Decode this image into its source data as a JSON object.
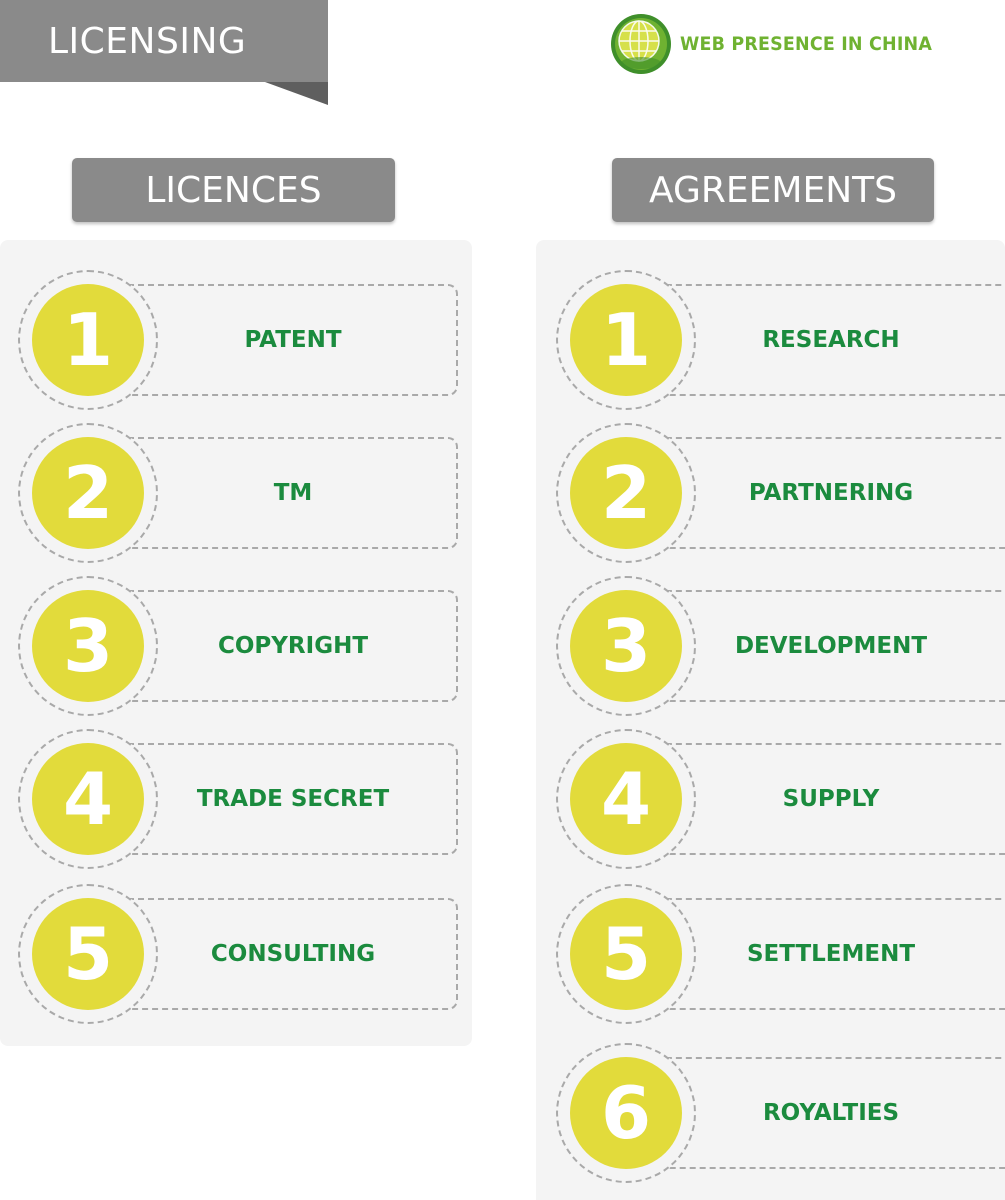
{
  "banner": {
    "title": "LICENSING"
  },
  "logo": {
    "text": "WEB PRESENCE IN CHINA",
    "icon": "globe-icon",
    "colors": {
      "green": "#6fb231",
      "yellow": "#d6e04a"
    }
  },
  "columns": {
    "licences": {
      "title": "LICENCES",
      "items": [
        {
          "number": "1",
          "label": "PATENT"
        },
        {
          "number": "2",
          "label": "TM"
        },
        {
          "number": "3",
          "label": "COPYRIGHT"
        },
        {
          "number": "4",
          "label": "TRADE SECRET"
        },
        {
          "number": "5",
          "label": "CONSULTING"
        }
      ]
    },
    "agreements": {
      "title": "AGREEMENTS",
      "items": [
        {
          "number": "1",
          "label": "RESEARCH"
        },
        {
          "number": "2",
          "label": "PARTNERING"
        },
        {
          "number": "3",
          "label": "DEVELOPMENT"
        },
        {
          "number": "4",
          "label": "SUPPLY"
        },
        {
          "number": "5",
          "label": "SETTLEMENT"
        },
        {
          "number": "6",
          "label": "ROYALTIES"
        }
      ]
    }
  },
  "colors": {
    "header_gray": "#8a8a8a",
    "circle_yellow": "#e2db3b",
    "label_green": "#1b8b3e",
    "panel": "#f4f4f4"
  }
}
